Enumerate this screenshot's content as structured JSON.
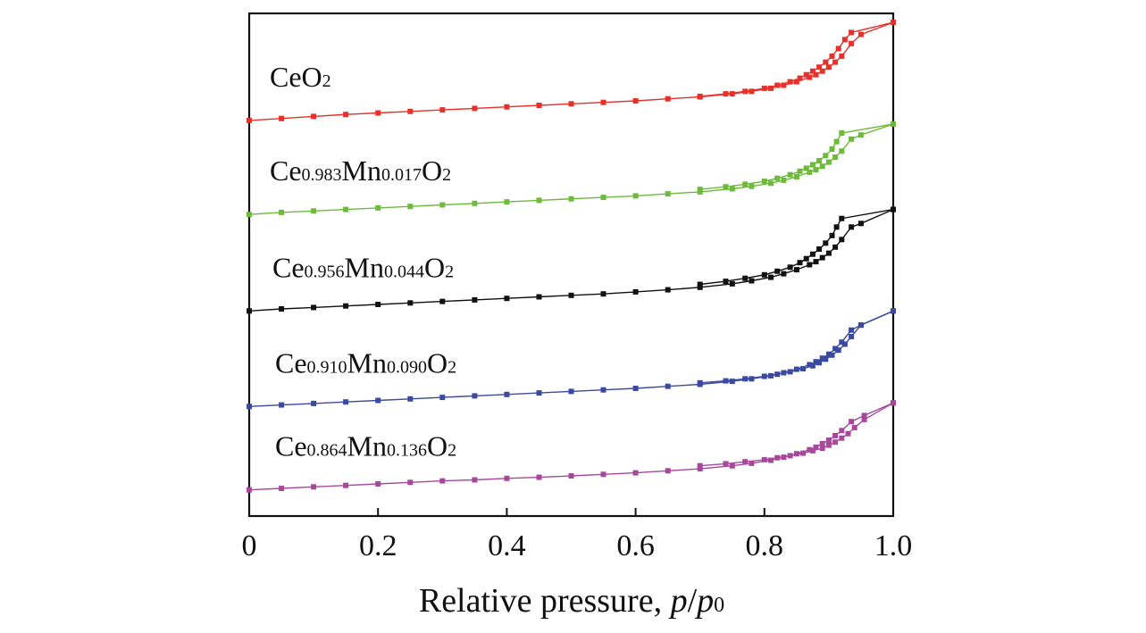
{
  "chart_data": {
    "type": "line",
    "title": "",
    "xlabel": {
      "main": "Relative pressure, ",
      "var1": "p",
      "slash": "/",
      "var2": "p",
      "var2_sub": "0"
    },
    "ylabel": "",
    "xlim": [
      0,
      1.0
    ],
    "ylim": [
      0,
      1.0
    ],
    "x_ticks": [
      0,
      0.2,
      0.4,
      0.6,
      0.8,
      1.0
    ],
    "x_tick_labels": [
      "0",
      "0.2",
      "0.4",
      "0.6",
      "0.8",
      "1.0"
    ],
    "y_ticks_labeled": false,
    "grid": false,
    "marker": "square",
    "series": [
      {
        "name": "CeO2",
        "label_parts": [
          {
            "t": "CeO",
            "sub": false
          },
          {
            "t": "2",
            "sub": true
          }
        ],
        "color": "#e8302a",
        "base": 0.787,
        "top": 0.982,
        "adsorption": [
          [
            0.0,
            0.787
          ],
          [
            0.05,
            0.791
          ],
          [
            0.1,
            0.795
          ],
          [
            0.15,
            0.799
          ],
          [
            0.2,
            0.802
          ],
          [
            0.25,
            0.805
          ],
          [
            0.3,
            0.808
          ],
          [
            0.35,
            0.811
          ],
          [
            0.4,
            0.814
          ],
          [
            0.45,
            0.817
          ],
          [
            0.5,
            0.82
          ],
          [
            0.55,
            0.823
          ],
          [
            0.6,
            0.826
          ],
          [
            0.65,
            0.83
          ],
          [
            0.7,
            0.834
          ],
          [
            0.75,
            0.84
          ],
          [
            0.78,
            0.845
          ],
          [
            0.81,
            0.851
          ],
          [
            0.83,
            0.857
          ],
          [
            0.85,
            0.864
          ],
          [
            0.87,
            0.873
          ],
          [
            0.88,
            0.878
          ],
          [
            0.89,
            0.885
          ],
          [
            0.9,
            0.893
          ],
          [
            0.91,
            0.903
          ],
          [
            0.92,
            0.915
          ],
          [
            0.935,
            0.94
          ],
          [
            0.95,
            0.958
          ],
          [
            1.0,
            0.982
          ]
        ],
        "desorption": [
          [
            1.0,
            0.982
          ],
          [
            0.935,
            0.962
          ],
          [
            0.925,
            0.948
          ],
          [
            0.915,
            0.93
          ],
          [
            0.905,
            0.915
          ],
          [
            0.895,
            0.903
          ],
          [
            0.885,
            0.893
          ],
          [
            0.875,
            0.885
          ],
          [
            0.865,
            0.878
          ],
          [
            0.855,
            0.871
          ],
          [
            0.84,
            0.864
          ],
          [
            0.82,
            0.857
          ],
          [
            0.8,
            0.851
          ],
          [
            0.77,
            0.845
          ],
          [
            0.74,
            0.84
          ],
          [
            0.7,
            0.835
          ]
        ]
      },
      {
        "name": "Ce0.983Mn0.017O2",
        "label_parts": [
          {
            "t": "Ce",
            "sub": false
          },
          {
            "t": "0.983",
            "sub": true
          },
          {
            "t": "Mn",
            "sub": false
          },
          {
            "t": "0.017",
            "sub": true
          },
          {
            "t": "O",
            "sub": false
          },
          {
            "t": "2",
            "sub": true
          }
        ],
        "color": "#6dbb3a",
        "base": 0.6,
        "top": 0.78,
        "adsorption": [
          [
            0.0,
            0.6
          ],
          [
            0.05,
            0.604
          ],
          [
            0.1,
            0.607
          ],
          [
            0.15,
            0.61
          ],
          [
            0.2,
            0.613
          ],
          [
            0.25,
            0.616
          ],
          [
            0.3,
            0.619
          ],
          [
            0.35,
            0.622
          ],
          [
            0.4,
            0.625
          ],
          [
            0.45,
            0.628
          ],
          [
            0.5,
            0.631
          ],
          [
            0.55,
            0.634
          ],
          [
            0.6,
            0.637
          ],
          [
            0.65,
            0.641
          ],
          [
            0.7,
            0.645
          ],
          [
            0.75,
            0.651
          ],
          [
            0.78,
            0.656
          ],
          [
            0.81,
            0.662
          ],
          [
            0.83,
            0.668
          ],
          [
            0.85,
            0.675
          ],
          [
            0.87,
            0.684
          ],
          [
            0.88,
            0.689
          ],
          [
            0.89,
            0.696
          ],
          [
            0.9,
            0.704
          ],
          [
            0.91,
            0.714
          ],
          [
            0.92,
            0.726
          ],
          [
            0.935,
            0.75
          ],
          [
            0.95,
            0.758
          ],
          [
            1.0,
            0.78
          ]
        ],
        "desorption": [
          [
            1.0,
            0.78
          ],
          [
            0.92,
            0.762
          ],
          [
            0.912,
            0.745
          ],
          [
            0.905,
            0.73
          ],
          [
            0.895,
            0.717
          ],
          [
            0.885,
            0.707
          ],
          [
            0.875,
            0.699
          ],
          [
            0.865,
            0.692
          ],
          [
            0.855,
            0.686
          ],
          [
            0.84,
            0.679
          ],
          [
            0.82,
            0.672
          ],
          [
            0.8,
            0.666
          ],
          [
            0.77,
            0.66
          ],
          [
            0.74,
            0.655
          ],
          [
            0.7,
            0.65
          ]
        ]
      },
      {
        "name": "Ce0.956Mn0.044O2",
        "label_parts": [
          {
            "t": "Ce",
            "sub": false
          },
          {
            "t": "0.956",
            "sub": true
          },
          {
            "t": "Mn",
            "sub": false
          },
          {
            "t": "0.044",
            "sub": true
          },
          {
            "t": "O",
            "sub": false
          },
          {
            "t": "2",
            "sub": true
          }
        ],
        "color": "#111111",
        "base": 0.408,
        "top": 0.61,
        "adsorption": [
          [
            0.0,
            0.408
          ],
          [
            0.05,
            0.412
          ],
          [
            0.1,
            0.415
          ],
          [
            0.15,
            0.418
          ],
          [
            0.2,
            0.421
          ],
          [
            0.25,
            0.424
          ],
          [
            0.3,
            0.427
          ],
          [
            0.35,
            0.43
          ],
          [
            0.4,
            0.433
          ],
          [
            0.45,
            0.436
          ],
          [
            0.5,
            0.439
          ],
          [
            0.55,
            0.442
          ],
          [
            0.6,
            0.446
          ],
          [
            0.65,
            0.45
          ],
          [
            0.7,
            0.455
          ],
          [
            0.75,
            0.462
          ],
          [
            0.78,
            0.468
          ],
          [
            0.81,
            0.475
          ],
          [
            0.83,
            0.482
          ],
          [
            0.85,
            0.49
          ],
          [
            0.87,
            0.5
          ],
          [
            0.88,
            0.506
          ],
          [
            0.89,
            0.514
          ],
          [
            0.9,
            0.523
          ],
          [
            0.91,
            0.535
          ],
          [
            0.92,
            0.55
          ],
          [
            0.935,
            0.575
          ],
          [
            0.95,
            0.582
          ],
          [
            1.0,
            0.61
          ]
        ],
        "desorption": [
          [
            1.0,
            0.61
          ],
          [
            0.92,
            0.592
          ],
          [
            0.912,
            0.575
          ],
          [
            0.905,
            0.558
          ],
          [
            0.895,
            0.543
          ],
          [
            0.885,
            0.531
          ],
          [
            0.875,
            0.521
          ],
          [
            0.865,
            0.512
          ],
          [
            0.855,
            0.504
          ],
          [
            0.84,
            0.495
          ],
          [
            0.82,
            0.487
          ],
          [
            0.8,
            0.48
          ],
          [
            0.77,
            0.473
          ],
          [
            0.74,
            0.467
          ],
          [
            0.7,
            0.461
          ]
        ]
      },
      {
        "name": "Ce0.910Mn0.090O2",
        "label_parts": [
          {
            "t": "Ce",
            "sub": false
          },
          {
            "t": "0.910",
            "sub": true
          },
          {
            "t": "Mn",
            "sub": false
          },
          {
            "t": "0.090",
            "sub": true
          },
          {
            "t": "O",
            "sub": false
          },
          {
            "t": "2",
            "sub": true
          }
        ],
        "color": "#3a4aa0",
        "base": 0.218,
        "top": 0.408,
        "adsorption": [
          [
            0.0,
            0.218
          ],
          [
            0.05,
            0.221
          ],
          [
            0.1,
            0.224
          ],
          [
            0.15,
            0.227
          ],
          [
            0.2,
            0.23
          ],
          [
            0.25,
            0.233
          ],
          [
            0.3,
            0.236
          ],
          [
            0.35,
            0.239
          ],
          [
            0.4,
            0.242
          ],
          [
            0.45,
            0.245
          ],
          [
            0.5,
            0.248
          ],
          [
            0.55,
            0.251
          ],
          [
            0.6,
            0.254
          ],
          [
            0.65,
            0.258
          ],
          [
            0.7,
            0.262
          ],
          [
            0.75,
            0.268
          ],
          [
            0.78,
            0.273
          ],
          [
            0.81,
            0.279
          ],
          [
            0.83,
            0.285
          ],
          [
            0.85,
            0.292
          ],
          [
            0.87,
            0.301
          ],
          [
            0.88,
            0.307
          ],
          [
            0.89,
            0.314
          ],
          [
            0.9,
            0.322
          ],
          [
            0.91,
            0.333
          ],
          [
            0.92,
            0.346
          ],
          [
            0.935,
            0.37
          ],
          [
            0.95,
            0.38
          ],
          [
            1.0,
            0.408
          ]
        ],
        "desorption": [
          [
            1.0,
            0.408
          ],
          [
            0.95,
            0.38
          ],
          [
            0.935,
            0.357
          ],
          [
            0.925,
            0.342
          ],
          [
            0.915,
            0.33
          ],
          [
            0.905,
            0.32
          ],
          [
            0.895,
            0.312
          ],
          [
            0.885,
            0.305
          ],
          [
            0.875,
            0.299
          ],
          [
            0.86,
            0.293
          ],
          [
            0.84,
            0.287
          ],
          [
            0.82,
            0.282
          ],
          [
            0.8,
            0.278
          ],
          [
            0.77,
            0.273
          ],
          [
            0.74,
            0.269
          ],
          [
            0.7,
            0.265
          ]
        ]
      },
      {
        "name": "Ce0.864Mn0.136O2",
        "label_parts": [
          {
            "t": "Ce",
            "sub": false
          },
          {
            "t": "0.864",
            "sub": true
          },
          {
            "t": "Mn",
            "sub": false
          },
          {
            "t": "0.136",
            "sub": true
          },
          {
            "t": "O",
            "sub": false
          },
          {
            "t": "2",
            "sub": true
          }
        ],
        "color": "#a8489c",
        "base": 0.052,
        "top": 0.225,
        "adsorption": [
          [
            0.0,
            0.052
          ],
          [
            0.05,
            0.055
          ],
          [
            0.1,
            0.058
          ],
          [
            0.15,
            0.061
          ],
          [
            0.2,
            0.064
          ],
          [
            0.25,
            0.067
          ],
          [
            0.3,
            0.07
          ],
          [
            0.35,
            0.072
          ],
          [
            0.4,
            0.075
          ],
          [
            0.45,
            0.077
          ],
          [
            0.5,
            0.08
          ],
          [
            0.55,
            0.083
          ],
          [
            0.6,
            0.086
          ],
          [
            0.65,
            0.09
          ],
          [
            0.7,
            0.094
          ],
          [
            0.75,
            0.1
          ],
          [
            0.78,
            0.105
          ],
          [
            0.81,
            0.111
          ],
          [
            0.83,
            0.117
          ],
          [
            0.85,
            0.124
          ],
          [
            0.87,
            0.132
          ],
          [
            0.88,
            0.137
          ],
          [
            0.89,
            0.144
          ],
          [
            0.9,
            0.151
          ],
          [
            0.91,
            0.16
          ],
          [
            0.92,
            0.17
          ],
          [
            0.935,
            0.188
          ],
          [
            0.955,
            0.2
          ],
          [
            1.0,
            0.225
          ]
        ],
        "desorption": [
          [
            1.0,
            0.225
          ],
          [
            0.955,
            0.192
          ],
          [
            0.94,
            0.176
          ],
          [
            0.93,
            0.164
          ],
          [
            0.92,
            0.155
          ],
          [
            0.91,
            0.147
          ],
          [
            0.9,
            0.141
          ],
          [
            0.89,
            0.135
          ],
          [
            0.875,
            0.13
          ],
          [
            0.86,
            0.125
          ],
          [
            0.84,
            0.12
          ],
          [
            0.82,
            0.116
          ],
          [
            0.8,
            0.112
          ],
          [
            0.77,
            0.108
          ],
          [
            0.74,
            0.104
          ],
          [
            0.7,
            0.1
          ]
        ]
      }
    ]
  }
}
